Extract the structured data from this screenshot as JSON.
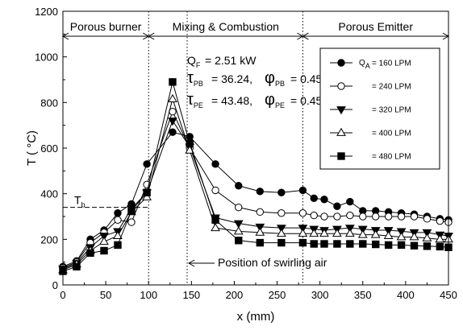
{
  "chart_data": {
    "type": "line",
    "xlabel": "x (mm)",
    "ylabel": "T ( °C)",
    "xlim": [
      0,
      450
    ],
    "ylim": [
      0,
      1200
    ],
    "xticks": [
      0,
      50,
      100,
      150,
      200,
      250,
      300,
      350,
      400,
      450
    ],
    "yticks": [
      0,
      200,
      400,
      600,
      800,
      1000,
      1200
    ],
    "grid": false,
    "legend_position": "right",
    "regions": [
      {
        "label": "Porous burner",
        "from": 0,
        "to": 100
      },
      {
        "label": "Mixing & Combustion",
        "from": 100,
        "to": 280
      },
      {
        "label": "Porous Emitter",
        "from": 280,
        "to": 450
      }
    ],
    "vlines": [
      100,
      145,
      280
    ],
    "annotations": {
      "qf": "Q",
      "qf_sub": "F",
      "qf_value": "= 2.51 kW",
      "tau": "τ",
      "phi": "φ",
      "pb_sub": "PB",
      "pe_sub": "PE",
      "tau_pb_value": "= 36.24,",
      "phi_pb_value": "= 0.45",
      "tau_pe_value": "= 43.48,",
      "phi_pe_value": "= 0.45",
      "tb": "T",
      "tb_sub": "b",
      "tb_value": 340,
      "swirl_text": "Position of swirling air",
      "qa": "Q",
      "qa_sub": "A"
    },
    "series": [
      {
        "name": "= 160 LPM",
        "marker": "circle-filled",
        "x": [
          0,
          16,
          32,
          48,
          64,
          80,
          98,
          128,
          148,
          178,
          205,
          230,
          255,
          280,
          293,
          305,
          320,
          335,
          350,
          365,
          380,
          395,
          410,
          425,
          440,
          450
        ],
        "y": [
          80,
          105,
          200,
          240,
          315,
          355,
          530,
          670,
          650,
          530,
          435,
          410,
          405,
          415,
          380,
          375,
          345,
          365,
          325,
          325,
          320,
          315,
          310,
          300,
          290,
          285
        ]
      },
      {
        "name": "= 240 LPM",
        "marker": "circle-open",
        "x": [
          0,
          16,
          32,
          48,
          64,
          80,
          98,
          128,
          148,
          178,
          205,
          230,
          255,
          280,
          293,
          305,
          320,
          335,
          350,
          365,
          380,
          395,
          410,
          425,
          440,
          450
        ],
        "y": [
          75,
          100,
          185,
          230,
          285,
          275,
          440,
          760,
          600,
          415,
          340,
          320,
          315,
          315,
          305,
          300,
          300,
          305,
          300,
          300,
          300,
          300,
          300,
          290,
          280,
          275
        ]
      },
      {
        "name": "= 320 LPM",
        "marker": "triangle-down-filled",
        "x": [
          0,
          16,
          32,
          48,
          64,
          80,
          98,
          128,
          148,
          178,
          205,
          230,
          255,
          280,
          293,
          305,
          320,
          335,
          350,
          365,
          380,
          395,
          410,
          425,
          440,
          450
        ],
        "y": [
          70,
          95,
          165,
          215,
          235,
          335,
          405,
          720,
          605,
          295,
          270,
          255,
          250,
          250,
          245,
          240,
          245,
          250,
          245,
          240,
          240,
          235,
          230,
          230,
          220,
          215
        ]
      },
      {
        "name": "= 400 LPM",
        "marker": "triangle-up-open",
        "x": [
          0,
          16,
          32,
          48,
          64,
          80,
          98,
          128,
          148,
          178,
          205,
          230,
          255,
          280,
          293,
          305,
          320,
          335,
          350,
          365,
          380,
          395,
          410,
          425,
          440,
          450
        ],
        "y": [
          65,
          90,
          150,
          190,
          215,
          320,
          385,
          815,
          590,
          250,
          235,
          230,
          225,
          225,
          225,
          225,
          225,
          225,
          220,
          220,
          215,
          210,
          210,
          205,
          200,
          200
        ]
      },
      {
        "name": "= 480 LPM",
        "marker": "square-filled",
        "x": [
          0,
          16,
          32,
          48,
          64,
          80,
          98,
          128,
          148,
          178,
          205,
          230,
          255,
          280,
          293,
          305,
          320,
          335,
          350,
          365,
          380,
          395,
          410,
          425,
          440,
          450
        ],
        "y": [
          60,
          80,
          140,
          150,
          175,
          325,
          405,
          890,
          620,
          285,
          195,
          185,
          185,
          185,
          180,
          180,
          180,
          180,
          180,
          178,
          175,
          175,
          172,
          170,
          168,
          165
        ]
      }
    ]
  }
}
